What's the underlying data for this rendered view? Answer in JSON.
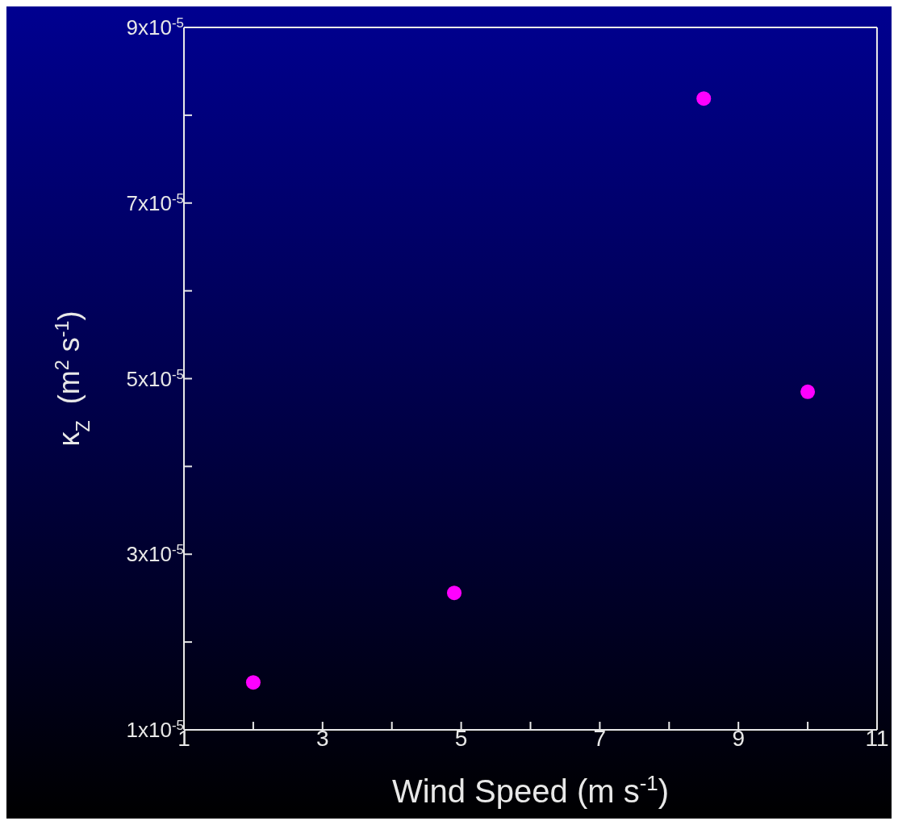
{
  "chart_data": {
    "type": "scatter",
    "xlabel": "Wind Speed (m s$^{-1}$)",
    "ylabel": "κ$_{Z}$  (m$^{2}$ s$^{-1}$)",
    "x": [
      2,
      4.9,
      8.5,
      10
    ],
    "series": [
      {
        "color": "#ff00ff",
        "values": [
          1.54e-05,
          2.56e-05,
          8.19e-05,
          4.85e-05
        ]
      }
    ],
    "xlim": [
      1,
      11
    ],
    "xticks": [
      1,
      {
        "value": 2,
        "label": null
      },
      3,
      {
        "value": 4,
        "label": null
      },
      5,
      {
        "value": 6,
        "label": null
      },
      7,
      {
        "value": 8,
        "label": null
      },
      9,
      {
        "value": 10,
        "label": null
      },
      11
    ],
    "ylim": [
      1e-05,
      9e-05
    ],
    "yticks": [
      {
        "value": 1e-05,
        "label": "1x10$^{-5}$"
      },
      {
        "value": 2e-05,
        "label": null
      },
      {
        "value": 3e-05,
        "label": "3x10$^{-5}$"
      },
      {
        "value": 4e-05,
        "label": null
      },
      {
        "value": 5e-05,
        "label": "5x10$^{-5}$"
      },
      {
        "value": 6e-05,
        "label": null
      },
      {
        "value": 7e-05,
        "label": "7x10$^{-5}$"
      },
      {
        "value": 8e-05,
        "label": null
      },
      {
        "value": 9e-05,
        "label": "9x10$^{-5}$"
      }
    ],
    "marker": "circle",
    "grid": false,
    "legend": false
  }
}
